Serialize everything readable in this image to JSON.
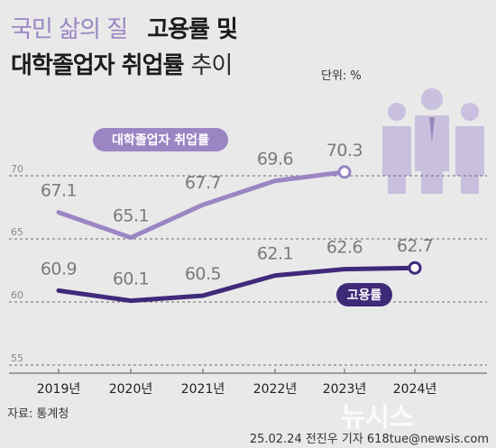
{
  "header": {
    "title_light": "국민 삶의 질",
    "title_bold": "고용률 및",
    "title2_bold": "대학졸업자 취업률",
    "title2_light": "추이",
    "unit": "단위: %"
  },
  "footer": {
    "source": "자료: 통계청",
    "credit": "25.02.24 전진우 기자 618tue@newsis.com",
    "watermark": "뉴시스"
  },
  "colors": {
    "graduate": "#9b86c3",
    "employment": "#3f2a7a",
    "background": "#e9e9ea"
  },
  "chart_data": {
    "type": "line",
    "categories": [
      "2019년",
      "2020년",
      "2021년",
      "2022년",
      "2023년",
      "2024년"
    ],
    "ylim": [
      55,
      72
    ],
    "yticks": [
      55,
      60,
      65,
      70
    ],
    "grid": true,
    "series": [
      {
        "name": "대학졸업자 취업률",
        "values": [
          67.1,
          65.1,
          67.7,
          69.6,
          70.3,
          null
        ],
        "color": "#9b86c3"
      },
      {
        "name": "고용률",
        "values": [
          60.9,
          60.1,
          60.5,
          62.1,
          62.6,
          62.7
        ],
        "color": "#3f2a7a"
      }
    ]
  }
}
